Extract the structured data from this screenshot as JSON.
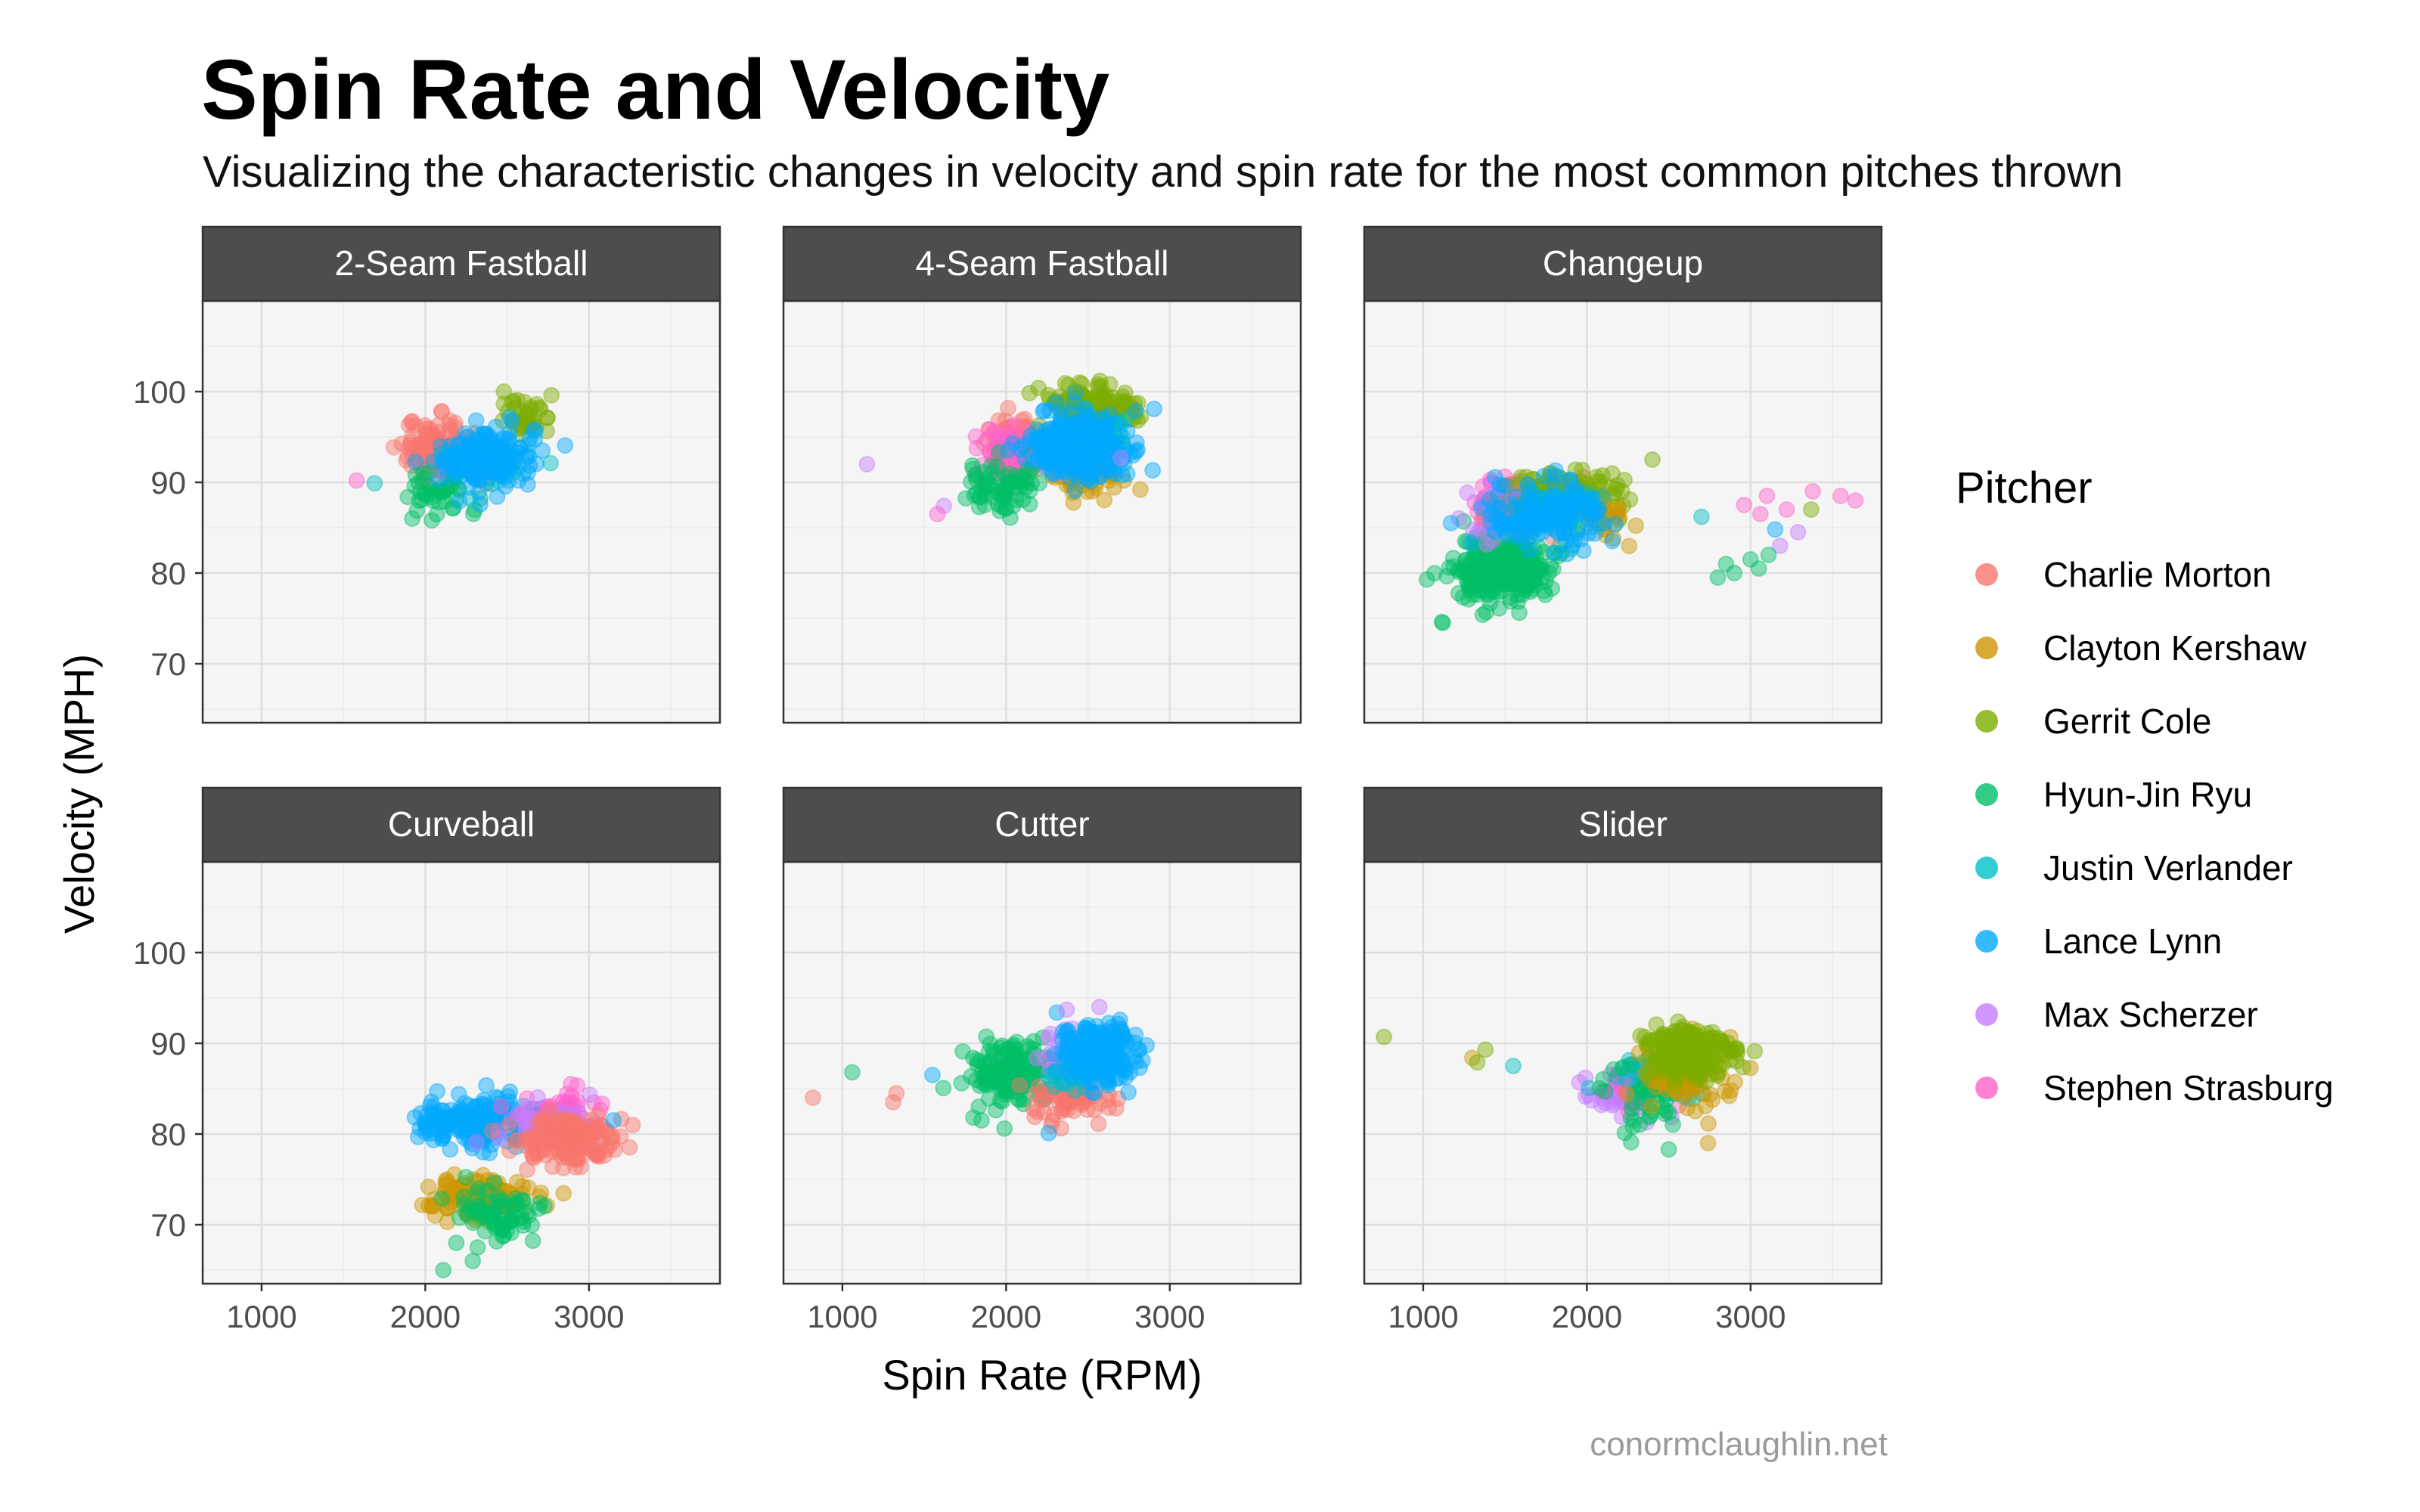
{
  "title": "Spin Rate and Velocity",
  "subtitle": "Visualizing the characteristic changes in velocity and spin rate for the most common pitches thrown",
  "caption": "conormclaughlin.net",
  "legend_title": "Pitcher",
  "chart_data": {
    "type": "scatter",
    "facet_by": "pitch type",
    "xlabel": "Spin Rate (RPM)",
    "ylabel": "Velocity (MPH)",
    "xlim": [
      640,
      3800
    ],
    "ylim": [
      63.5,
      110
    ],
    "xticks": [
      1000,
      2000,
      3000
    ],
    "yticks": [
      70,
      80,
      90,
      100
    ],
    "grid": true,
    "legend_position": "right",
    "marker_opacity": 0.45,
    "pitchers": [
      {
        "name": "Charlie Morton",
        "color": "#F8766D"
      },
      {
        "name": "Clayton Kershaw",
        "color": "#CD9600"
      },
      {
        "name": "Gerrit Cole",
        "color": "#7CAE00"
      },
      {
        "name": "Hyun-Jin Ryu",
        "color": "#00BE67"
      },
      {
        "name": "Justin Verlander",
        "color": "#00BFC4"
      },
      {
        "name": "Lance Lynn",
        "color": "#00A9FF"
      },
      {
        "name": "Max Scherzer",
        "color": "#C77CFF"
      },
      {
        "name": "Stephen Strasburg",
        "color": "#FF61CC"
      }
    ],
    "facets": [
      {
        "label": "2-Seam Fastball",
        "clusters": [
          {
            "pitcher": "Charlie Morton",
            "cx": 2100,
            "cy": 93.5,
            "sx": 110,
            "sy": 1.6,
            "n": 130
          },
          {
            "pitcher": "Hyun-Jin Ryu",
            "cx": 2080,
            "cy": 89.0,
            "sx": 90,
            "sy": 1.3,
            "n": 40
          },
          {
            "pitcher": "Gerrit Cole",
            "cx": 2630,
            "cy": 97.5,
            "sx": 100,
            "sy": 1.3,
            "n": 35
          },
          {
            "pitcher": "Justin Verlander",
            "cx": 2380,
            "cy": 92.5,
            "sx": 130,
            "sy": 1.5,
            "n": 40
          },
          {
            "pitcher": "Lance Lynn",
            "cx": 2370,
            "cy": 92.5,
            "sx": 140,
            "sy": 1.6,
            "n": 160
          }
        ],
        "points": [
          {
            "pitcher": "Stephen Strasburg",
            "x": 1580,
            "y": 90.2
          },
          {
            "pitcher": "Justin Verlander",
            "x": 1690,
            "y": 89.9
          },
          {
            "pitcher": "Hyun-Jin Ryu",
            "x": 1920,
            "y": 86.0
          },
          {
            "pitcher": "Hyun-Jin Ryu",
            "x": 2040,
            "y": 85.8
          },
          {
            "pitcher": "Gerrit Cole",
            "x": 2480,
            "y": 100.0
          },
          {
            "pitcher": "Gerrit Cole",
            "x": 2770,
            "y": 99.6
          }
        ]
      },
      {
        "label": "4-Seam Fastball",
        "clusters": [
          {
            "pitcher": "Charlie Morton",
            "cx": 2060,
            "cy": 94.0,
            "sx": 100,
            "sy": 1.5,
            "n": 100
          },
          {
            "pitcher": "Stephen Strasburg",
            "cx": 2000,
            "cy": 93.5,
            "sx": 90,
            "sy": 1.5,
            "n": 50
          },
          {
            "pitcher": "Hyun-Jin Ryu",
            "cx": 1970,
            "cy": 89.5,
            "sx": 110,
            "sy": 1.5,
            "n": 70
          },
          {
            "pitcher": "Clayton Kershaw",
            "cx": 2500,
            "cy": 90.5,
            "sx": 130,
            "sy": 1.2,
            "n": 50
          },
          {
            "pitcher": "Max Scherzer",
            "cx": 2450,
            "cy": 94.5,
            "sx": 110,
            "sy": 1.5,
            "n": 40
          },
          {
            "pitcher": "Gerrit Cole",
            "cx": 2530,
            "cy": 98.5,
            "sx": 140,
            "sy": 1.2,
            "n": 150
          },
          {
            "pitcher": "Justin Verlander",
            "cx": 2540,
            "cy": 94.5,
            "sx": 110,
            "sy": 1.5,
            "n": 60
          },
          {
            "pitcher": "Lance Lynn",
            "cx": 2460,
            "cy": 94.0,
            "sx": 150,
            "sy": 1.8,
            "n": 260
          }
        ],
        "points": [
          {
            "pitcher": "Max Scherzer",
            "x": 1150,
            "y": 92.0
          },
          {
            "pitcher": "Max Scherzer",
            "x": 1620,
            "y": 87.4
          },
          {
            "pitcher": "Stephen Strasburg",
            "x": 1580,
            "y": 86.5
          },
          {
            "pitcher": "Clayton Kershaw",
            "x": 2820,
            "y": 89.2
          },
          {
            "pitcher": "Gerrit Cole",
            "x": 2450,
            "y": 101.0
          },
          {
            "pitcher": "Max Scherzer",
            "x": 2700,
            "y": 92.7
          }
        ]
      },
      {
        "label": "Changeup",
        "clusters": [
          {
            "pitcher": "Hyun-Jin Ryu",
            "cx": 1480,
            "cy": 80.5,
            "sx": 140,
            "sy": 2.0,
            "n": 260
          },
          {
            "pitcher": "Stephen Strasburg",
            "cx": 1560,
            "cy": 88.0,
            "sx": 130,
            "sy": 1.2,
            "n": 70
          },
          {
            "pitcher": "Max Scherzer",
            "cx": 1500,
            "cy": 86.0,
            "sx": 120,
            "sy": 1.5,
            "n": 40
          },
          {
            "pitcher": "Charlie Morton",
            "cx": 1700,
            "cy": 87.5,
            "sx": 150,
            "sy": 1.4,
            "n": 50
          },
          {
            "pitcher": "Gerrit Cole",
            "cx": 1900,
            "cy": 89.0,
            "sx": 170,
            "sy": 1.3,
            "n": 110
          },
          {
            "pitcher": "Clayton Kershaw",
            "cx": 2150,
            "cy": 86.0,
            "sx": 100,
            "sy": 1.2,
            "n": 25
          },
          {
            "pitcher": "Justin Verlander",
            "cx": 1800,
            "cy": 87.0,
            "sx": 140,
            "sy": 1.4,
            "n": 40
          },
          {
            "pitcher": "Lance Lynn",
            "cx": 1760,
            "cy": 86.5,
            "sx": 180,
            "sy": 1.8,
            "n": 160
          }
        ],
        "points": [
          {
            "pitcher": "Stephen Strasburg",
            "x": 2960,
            "y": 87.5
          },
          {
            "pitcher": "Stephen Strasburg",
            "x": 3100,
            "y": 88.5
          },
          {
            "pitcher": "Stephen Strasburg",
            "x": 3220,
            "y": 87.0
          },
          {
            "pitcher": "Stephen Strasburg",
            "x": 3380,
            "y": 89.0
          },
          {
            "pitcher": "Stephen Strasburg",
            "x": 3550,
            "y": 88.5
          },
          {
            "pitcher": "Stephen Strasburg",
            "x": 3640,
            "y": 88.0
          },
          {
            "pitcher": "Stephen Strasburg",
            "x": 3060,
            "y": 86.5
          },
          {
            "pitcher": "Max Scherzer",
            "x": 3290,
            "y": 84.5
          },
          {
            "pitcher": "Max Scherzer",
            "x": 3180,
            "y": 83.0
          },
          {
            "pitcher": "Gerrit Cole",
            "x": 3370,
            "y": 87.0
          },
          {
            "pitcher": "Hyun-Jin Ryu",
            "x": 2800,
            "y": 79.5
          },
          {
            "pitcher": "Hyun-Jin Ryu",
            "x": 2900,
            "y": 80.0
          },
          {
            "pitcher": "Hyun-Jin Ryu",
            "x": 3000,
            "y": 81.5
          },
          {
            "pitcher": "Hyun-Jin Ryu",
            "x": 3050,
            "y": 80.5
          },
          {
            "pitcher": "Hyun-Jin Ryu",
            "x": 3110,
            "y": 82.0
          },
          {
            "pitcher": "Hyun-Jin Ryu",
            "x": 2850,
            "y": 81.0
          },
          {
            "pitcher": "Lance Lynn",
            "x": 3150,
            "y": 84.8
          },
          {
            "pitcher": "Justin Verlander",
            "x": 2700,
            "y": 86.2
          },
          {
            "pitcher": "Lance Lynn",
            "x": 1170,
            "y": 85.5
          },
          {
            "pitcher": "Hyun-Jin Ryu",
            "x": 1120,
            "y": 74.5
          },
          {
            "pitcher": "Gerrit Cole",
            "x": 2400,
            "y": 92.5
          }
        ]
      },
      {
        "label": "Curveball",
        "clusters": [
          {
            "pitcher": "Lance Lynn",
            "cx": 2350,
            "cy": 81.5,
            "sx": 180,
            "sy": 1.3,
            "n": 200
          },
          {
            "pitcher": "Clayton Kershaw",
            "cx": 2330,
            "cy": 73.0,
            "sx": 150,
            "sy": 1.1,
            "n": 140
          },
          {
            "pitcher": "Hyun-Jin Ryu",
            "cx": 2450,
            "cy": 71.0,
            "sx": 120,
            "sy": 1.6,
            "n": 70
          },
          {
            "pitcher": "Stephen Strasburg",
            "cx": 2850,
            "cy": 82.5,
            "sx": 120,
            "sy": 1.2,
            "n": 50
          },
          {
            "pitcher": "Max Scherzer",
            "cx": 2750,
            "cy": 81.0,
            "sx": 150,
            "sy": 1.3,
            "n": 50
          },
          {
            "pitcher": "Charlie Morton",
            "cx": 2880,
            "cy": 79.5,
            "sx": 140,
            "sy": 1.5,
            "n": 170
          }
        ],
        "points": [
          {
            "pitcher": "Clayton Kershaw",
            "x": 2040,
            "y": 72.0
          },
          {
            "pitcher": "Clayton Kershaw",
            "x": 2060,
            "y": 71.0
          },
          {
            "pitcher": "Hyun-Jin Ryu",
            "x": 2110,
            "y": 65.0
          },
          {
            "pitcher": "Hyun-Jin Ryu",
            "x": 2290,
            "y": 66.0
          },
          {
            "pitcher": "Hyun-Jin Ryu",
            "x": 2320,
            "y": 67.5
          },
          {
            "pitcher": "Lance Lynn",
            "x": 2030,
            "y": 81.5
          },
          {
            "pitcher": "Stephen Strasburg",
            "x": 2890,
            "y": 85.5
          },
          {
            "pitcher": "Lance Lynn",
            "x": 3150,
            "y": 81.5
          }
        ]
      },
      {
        "label": "Cutter",
        "clusters": [
          {
            "pitcher": "Hyun-Jin Ryu",
            "cx": 2020,
            "cy": 86.5,
            "sx": 120,
            "sy": 1.7,
            "n": 150
          },
          {
            "pitcher": "Charlie Morton",
            "cx": 2380,
            "cy": 84.0,
            "sx": 130,
            "sy": 1.2,
            "n": 70
          },
          {
            "pitcher": "Max Scherzer",
            "cx": 2450,
            "cy": 88.5,
            "sx": 120,
            "sy": 1.6,
            "n": 60
          },
          {
            "pitcher": "Justin Verlander",
            "cx": 2450,
            "cy": 87.0,
            "sx": 110,
            "sy": 1.5,
            "n": 40
          },
          {
            "pitcher": "Lance Lynn",
            "cx": 2560,
            "cy": 89.0,
            "sx": 110,
            "sy": 1.5,
            "n": 220
          }
        ],
        "points": [
          {
            "pitcher": "Charlie Morton",
            "x": 820,
            "y": 84.0
          },
          {
            "pitcher": "Charlie Morton",
            "x": 1310,
            "y": 83.5
          },
          {
            "pitcher": "Charlie Morton",
            "x": 1330,
            "y": 84.5
          },
          {
            "pitcher": "Hyun-Jin Ryu",
            "x": 1060,
            "y": 86.8
          },
          {
            "pitcher": "Lance Lynn",
            "x": 1550,
            "y": 86.5
          },
          {
            "pitcher": "Hyun-Jin Ryu",
            "x": 1800,
            "y": 81.8
          },
          {
            "pitcher": "Hyun-Jin Ryu",
            "x": 1850,
            "y": 81.5
          },
          {
            "pitcher": "Hyun-Jin Ryu",
            "x": 1990,
            "y": 80.6
          },
          {
            "pitcher": "Lance Lynn",
            "x": 2260,
            "y": 80.1
          },
          {
            "pitcher": "Max Scherzer",
            "x": 2370,
            "y": 93.7
          },
          {
            "pitcher": "Max Scherzer",
            "x": 2570,
            "y": 94.0
          }
        ]
      },
      {
        "label": "Slider",
        "clusters": [
          {
            "pitcher": "Max Scherzer",
            "cx": 2220,
            "cy": 84.5,
            "sx": 130,
            "sy": 1.3,
            "n": 60
          },
          {
            "pitcher": "Stephen Strasburg",
            "cx": 2300,
            "cy": 85.5,
            "sx": 120,
            "sy": 1.2,
            "n": 40
          },
          {
            "pitcher": "Justin Verlander",
            "cx": 2450,
            "cy": 86.0,
            "sx": 120,
            "sy": 1.3,
            "n": 60
          },
          {
            "pitcher": "Hyun-Jin Ryu",
            "cx": 2380,
            "cy": 83.5,
            "sx": 120,
            "sy": 2.0,
            "n": 40
          },
          {
            "pitcher": "Clayton Kershaw",
            "cx": 2570,
            "cy": 86.5,
            "sx": 140,
            "sy": 1.8,
            "n": 80
          },
          {
            "pitcher": "Gerrit Cole",
            "cx": 2620,
            "cy": 89.0,
            "sx": 120,
            "sy": 1.3,
            "n": 250
          }
        ],
        "points": [
          {
            "pitcher": "Gerrit Cole",
            "x": 760,
            "y": 90.7
          },
          {
            "pitcher": "Clayton Kershaw",
            "x": 1300,
            "y": 88.4
          },
          {
            "pitcher": "Gerrit Cole",
            "x": 1380,
            "y": 89.3
          },
          {
            "pitcher": "Gerrit Cole",
            "x": 1330,
            "y": 87.9
          },
          {
            "pitcher": "Justin Verlander",
            "x": 1550,
            "y": 87.5
          },
          {
            "pitcher": "Hyun-Jin Ryu",
            "x": 2500,
            "y": 78.3
          },
          {
            "pitcher": "Hyun-Jin Ryu",
            "x": 2270,
            "y": 79.1
          },
          {
            "pitcher": "Clayton Kershaw",
            "x": 2740,
            "y": 79.0
          },
          {
            "pitcher": "Clayton Kershaw",
            "x": 2870,
            "y": 84.2
          }
        ]
      }
    ]
  }
}
